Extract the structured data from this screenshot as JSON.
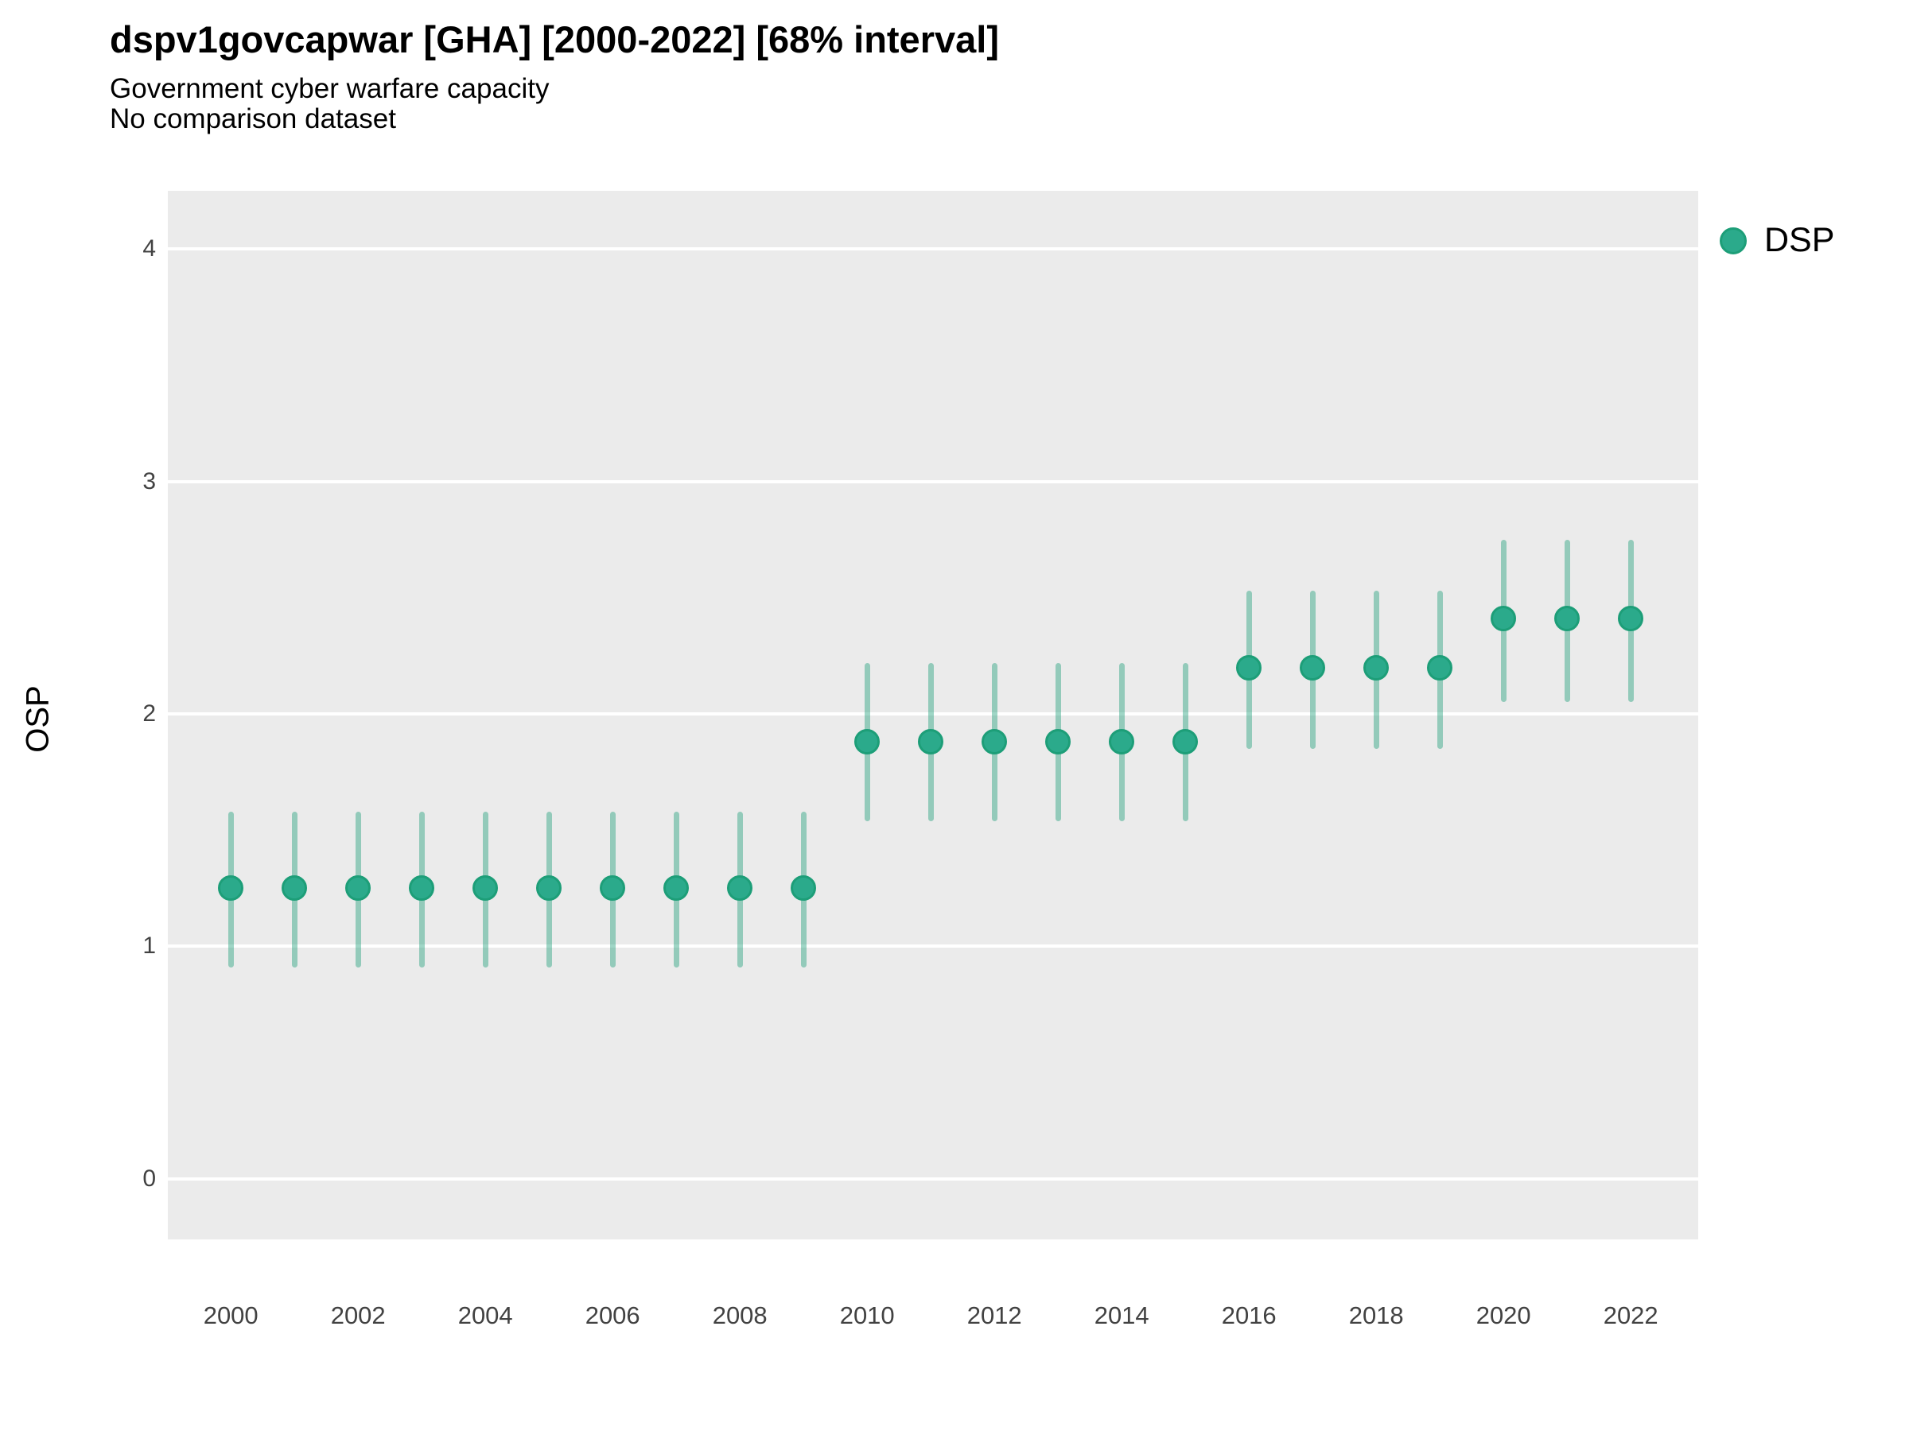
{
  "header": {
    "title": "dspv1govcapwar [GHA] [2000-2022] [68% interval]",
    "subtitle": "Government cyber warfare capacity",
    "subtitle2": "No comparison dataset"
  },
  "legend": {
    "position": "right",
    "items": [
      {
        "label": "DSP",
        "fill": "#2BAA8B",
        "stroke": "#1D9E78"
      }
    ]
  },
  "colors": {
    "panel_background": "#EBEBEB",
    "gridline": "#FFFFFF",
    "point_fill": "#2BAA8B",
    "point_stroke": "#1D9E78",
    "interval_bar": "rgba(27,158,119,0.42)",
    "tick_label": "#424242"
  },
  "chart_data": {
    "type": "scatter",
    "title": "dspv1govcapwar [GHA] [2000-2022] [68% interval]",
    "subtitle": "Government cyber warfare capacity",
    "note": "No comparison dataset",
    "xlabel": "",
    "ylabel": "OSP",
    "interval": "68%",
    "grid": true,
    "legend_position": "right",
    "xlim": [
      1999.01,
      2023.06
    ],
    "ylim": [
      -0.26,
      4.25
    ],
    "x_ticks": [
      2000,
      2002,
      2004,
      2006,
      2008,
      2010,
      2012,
      2014,
      2016,
      2018,
      2020,
      2022
    ],
    "y_ticks": [
      0,
      1,
      2,
      3,
      4
    ],
    "series": [
      {
        "name": "DSP",
        "points": [
          {
            "year": 2000,
            "value": 1.25,
            "low": 0.91,
            "high": 1.58
          },
          {
            "year": 2001,
            "value": 1.25,
            "low": 0.91,
            "high": 1.58
          },
          {
            "year": 2002,
            "value": 1.25,
            "low": 0.91,
            "high": 1.58
          },
          {
            "year": 2003,
            "value": 1.25,
            "low": 0.91,
            "high": 1.58
          },
          {
            "year": 2004,
            "value": 1.25,
            "low": 0.91,
            "high": 1.58
          },
          {
            "year": 2005,
            "value": 1.25,
            "low": 0.91,
            "high": 1.58
          },
          {
            "year": 2006,
            "value": 1.25,
            "low": 0.91,
            "high": 1.58
          },
          {
            "year": 2007,
            "value": 1.25,
            "low": 0.91,
            "high": 1.58
          },
          {
            "year": 2008,
            "value": 1.25,
            "low": 0.91,
            "high": 1.58
          },
          {
            "year": 2009,
            "value": 1.25,
            "low": 0.91,
            "high": 1.58
          },
          {
            "year": 2010,
            "value": 1.88,
            "low": 1.54,
            "high": 2.22
          },
          {
            "year": 2011,
            "value": 1.88,
            "low": 1.54,
            "high": 2.22
          },
          {
            "year": 2012,
            "value": 1.88,
            "low": 1.54,
            "high": 2.22
          },
          {
            "year": 2013,
            "value": 1.88,
            "low": 1.54,
            "high": 2.22
          },
          {
            "year": 2014,
            "value": 1.88,
            "low": 1.54,
            "high": 2.22
          },
          {
            "year": 2015,
            "value": 1.88,
            "low": 1.54,
            "high": 2.22
          },
          {
            "year": 2016,
            "value": 2.2,
            "low": 1.85,
            "high": 2.53
          },
          {
            "year": 2017,
            "value": 2.2,
            "low": 1.85,
            "high": 2.53
          },
          {
            "year": 2018,
            "value": 2.2,
            "low": 1.85,
            "high": 2.53
          },
          {
            "year": 2019,
            "value": 2.2,
            "low": 1.85,
            "high": 2.53
          },
          {
            "year": 2020,
            "value": 2.41,
            "low": 2.05,
            "high": 2.75
          },
          {
            "year": 2021,
            "value": 2.41,
            "low": 2.05,
            "high": 2.75
          },
          {
            "year": 2022,
            "value": 2.41,
            "low": 2.05,
            "high": 2.75
          }
        ]
      }
    ]
  }
}
